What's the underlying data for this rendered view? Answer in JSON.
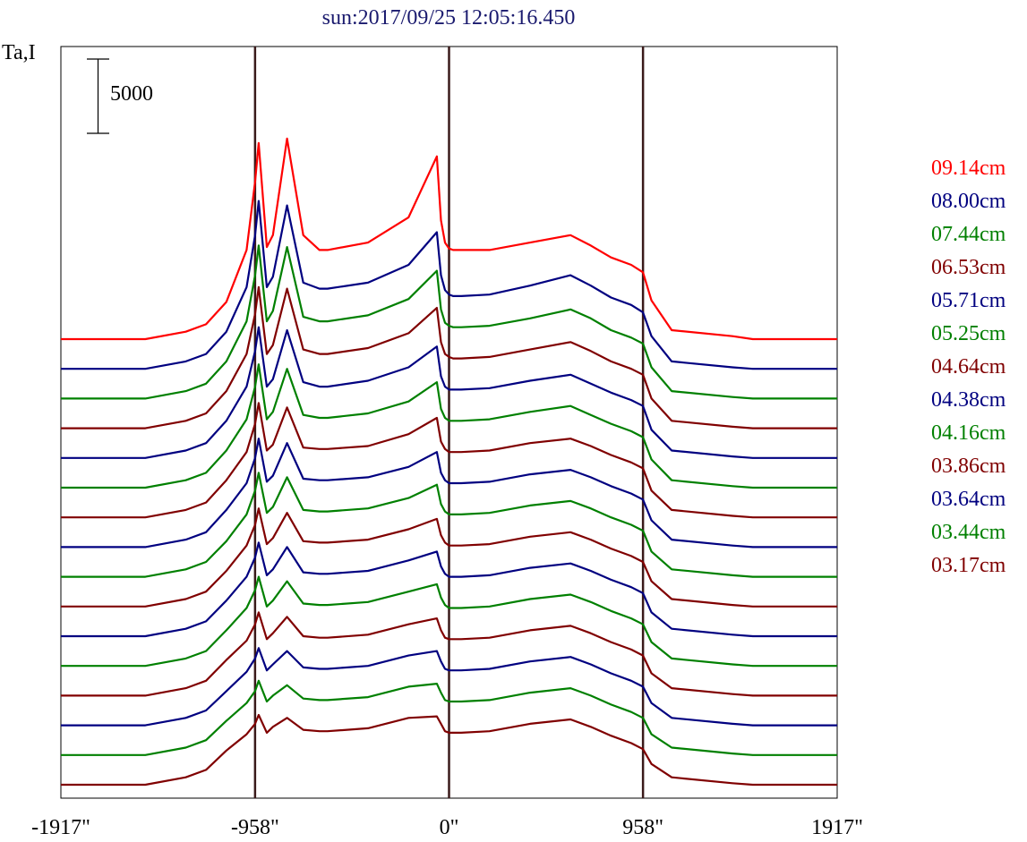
{
  "chart_data": {
    "type": "line",
    "title": "sun:2017/09/25 12:05:16.450",
    "ylabel": "Ta,I",
    "scale_bar_label": "5000",
    "xlim": [
      -1917,
      1917
    ],
    "x_ticks": [
      {
        "value": -1917,
        "label": "-1917\""
      },
      {
        "value": -958,
        "label": "-958\""
      },
      {
        "value": 0,
        "label": "0\""
      },
      {
        "value": 958,
        "label": "958\""
      },
      {
        "value": 1917,
        "label": "1917\""
      }
    ],
    "vertical_markers": [
      -958,
      0,
      958
    ],
    "offset_step": 2000,
    "scale_bar": 5000,
    "colors": {
      "red": "#ff0000",
      "blue": "#000080",
      "green": "#008000",
      "maroon": "#800000",
      "axis": "#000000",
      "marker": "#3a1a1a"
    },
    "x": [
      -1917,
      -1500,
      -1300,
      -1200,
      -1100,
      -1000,
      -958,
      -940,
      -900,
      -870,
      -800,
      -720,
      -640,
      -600,
      -400,
      -200,
      -60,
      -40,
      -20,
      0,
      20,
      60,
      200,
      400,
      600,
      700,
      800,
      900,
      958,
      1000,
      1100,
      1400,
      1500,
      1917
    ],
    "series": [
      {
        "name": "09.14cm",
        "color": "#ff0000",
        "values": [
          0,
          0,
          500,
          1000,
          2500,
          6000,
          10600,
          13200,
          6200,
          7000,
          13500,
          7000,
          6000,
          6000,
          6500,
          8200,
          12300,
          8000,
          6500,
          6100,
          6000,
          6000,
          6000,
          6500,
          7000,
          6300,
          5500,
          5000,
          4500,
          2600,
          600,
          200,
          0,
          0
        ]
      },
      {
        "name": "08.00cm",
        "color": "#000080",
        "values": [
          0,
          0,
          500,
          1000,
          2500,
          5500,
          9000,
          11300,
          5500,
          6200,
          11000,
          5800,
          5400,
          5400,
          5800,
          7000,
          9200,
          6300,
          5300,
          5000,
          4900,
          4900,
          5000,
          5600,
          6300,
          5600,
          4800,
          4300,
          3800,
          2200,
          500,
          100,
          0,
          0
        ]
      },
      {
        "name": "07.44cm",
        "color": "#008000",
        "values": [
          0,
          0,
          500,
          1000,
          2500,
          5200,
          8300,
          10300,
          5200,
          5900,
          10200,
          5500,
          5200,
          5200,
          5600,
          6700,
          8600,
          6000,
          5100,
          4900,
          4800,
          4800,
          4900,
          5400,
          6000,
          5400,
          4600,
          4100,
          3700,
          2100,
          500,
          100,
          0,
          0
        ]
      },
      {
        "name": "06.53cm",
        "color": "#800000",
        "values": [
          0,
          0,
          500,
          1000,
          2500,
          5000,
          7700,
          9500,
          5000,
          5600,
          9400,
          5300,
          5000,
          5000,
          5400,
          6400,
          8100,
          5800,
          5000,
          4800,
          4700,
          4700,
          4800,
          5300,
          5800,
          5200,
          4500,
          4000,
          3600,
          2000,
          500,
          100,
          0,
          0
        ]
      },
      {
        "name": "05.71cm",
        "color": "#000080",
        "values": [
          0,
          0,
          500,
          1000,
          2500,
          4800,
          7200,
          8800,
          4800,
          5300,
          8600,
          5100,
          4800,
          4800,
          5200,
          6100,
          7500,
          5500,
          4800,
          4600,
          4600,
          4600,
          4700,
          5200,
          5600,
          5000,
          4400,
          3900,
          3500,
          1900,
          500,
          100,
          0,
          0
        ]
      },
      {
        "name": "05.25cm",
        "color": "#008000",
        "values": [
          0,
          0,
          500,
          1000,
          2500,
          4600,
          6800,
          8300,
          4600,
          5100,
          8000,
          4900,
          4700,
          4700,
          5000,
          5800,
          7100,
          5300,
          4700,
          4500,
          4500,
          4500,
          4600,
          5100,
          5500,
          4900,
          4300,
          3800,
          3400,
          1900,
          500,
          100,
          0,
          0
        ]
      },
      {
        "name": "04.64cm",
        "color": "#800000",
        "values": [
          0,
          0,
          500,
          1000,
          2500,
          4400,
          6300,
          7700,
          4500,
          4900,
          7400,
          4700,
          4600,
          4600,
          4800,
          5600,
          6700,
          5100,
          4600,
          4400,
          4400,
          4400,
          4500,
          5000,
          5300,
          4800,
          4200,
          3700,
          3300,
          1800,
          500,
          100,
          0,
          0
        ]
      },
      {
        "name": "04.38cm",
        "color": "#000080",
        "values": [
          0,
          0,
          500,
          1000,
          2500,
          4300,
          6000,
          7300,
          4400,
          4800,
          7000,
          4600,
          4500,
          4500,
          4700,
          5400,
          6400,
          5000,
          4500,
          4300,
          4300,
          4300,
          4400,
          4900,
          5200,
          4700,
          4100,
          3600,
          3200,
          1800,
          500,
          100,
          0,
          0
        ]
      },
      {
        "name": "04.16cm",
        "color": "#008000",
        "values": [
          0,
          0,
          500,
          1000,
          2400,
          4200,
          5800,
          7000,
          4300,
          4700,
          6700,
          4500,
          4400,
          4400,
          4600,
          5300,
          6200,
          4900,
          4400,
          4200,
          4200,
          4200,
          4300,
          4800,
          5100,
          4600,
          4000,
          3500,
          3100,
          1700,
          500,
          100,
          0,
          0
        ]
      },
      {
        "name": "03.86cm",
        "color": "#800000",
        "values": [
          0,
          0,
          500,
          1000,
          2400,
          4100,
          5500,
          6600,
          4200,
          4600,
          6300,
          4400,
          4300,
          4300,
          4500,
          5200,
          5900,
          4800,
          4300,
          4100,
          4100,
          4100,
          4200,
          4700,
          5000,
          4500,
          3900,
          3400,
          3000,
          1700,
          500,
          100,
          0,
          0
        ]
      },
      {
        "name": "03.64cm",
        "color": "#000080",
        "values": [
          0,
          0,
          500,
          1000,
          2400,
          4000,
          5300,
          6300,
          4100,
          4500,
          6000,
          4300,
          4200,
          4200,
          4400,
          5100,
          5700,
          4700,
          4200,
          4000,
          4000,
          4000,
          4100,
          4600,
          4900,
          4400,
          3800,
          3300,
          2900,
          1600,
          500,
          100,
          0,
          0
        ]
      },
      {
        "name": "03.44cm",
        "color": "#008000",
        "values": [
          0,
          0,
          500,
          1000,
          2400,
          3900,
          5100,
          6000,
          4000,
          4400,
          5700,
          4200,
          4100,
          4100,
          4300,
          5000,
          5500,
          4600,
          4100,
          3900,
          3900,
          3900,
          4000,
          4500,
          4800,
          4300,
          3700,
          3200,
          2800,
          1600,
          500,
          100,
          0,
          0
        ]
      },
      {
        "name": "03.17cm",
        "color": "#800000",
        "values": [
          0,
          0,
          500,
          1000,
          2400,
          3700,
          4800,
          5600,
          3800,
          4200,
          5300,
          4000,
          3900,
          3900,
          4100,
          4800,
          5200,
          4400,
          3900,
          3800,
          3800,
          3800,
          3900,
          4400,
          4700,
          4200,
          3600,
          3100,
          2700,
          1500,
          500,
          100,
          0,
          0
        ]
      },
      {
        "name": "",
        "color": "#000080",
        "values": [
          0,
          0,
          500,
          1000,
          2300,
          3600,
          4500,
          5200,
          3700,
          4100,
          5000,
          3900,
          3800,
          3800,
          4000,
          4700,
          5000,
          4300,
          3800,
          3700,
          3700,
          3700,
          3800,
          4300,
          4600,
          4100,
          3500,
          3000,
          2600,
          1500,
          500,
          100,
          0,
          0
        ]
      },
      {
        "name": "",
        "color": "#008000",
        "values": [
          0,
          0,
          500,
          1000,
          2300,
          3500,
          4300,
          5000,
          3600,
          4000,
          4700,
          3800,
          3700,
          3700,
          3900,
          4600,
          4800,
          4200,
          3700,
          3600,
          3600,
          3600,
          3700,
          4200,
          4500,
          4000,
          3400,
          2900,
          2500,
          1400,
          500,
          100,
          0,
          0
        ]
      },
      {
        "name": "",
        "color": "#800000",
        "values": [
          0,
          0,
          500,
          1000,
          2300,
          3400,
          4100,
          4700,
          3500,
          3900,
          4500,
          3700,
          3600,
          3600,
          3800,
          4500,
          4600,
          4100,
          3600,
          3500,
          3500,
          3500,
          3600,
          4100,
          4400,
          3900,
          3300,
          2800,
          2400,
          1400,
          500,
          100,
          0,
          0
        ]
      }
    ]
  }
}
